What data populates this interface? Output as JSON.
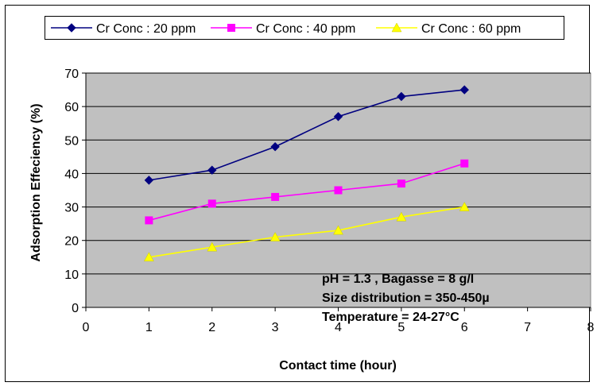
{
  "chart_data": {
    "type": "line",
    "xlabel": "Contact time (hour)",
    "ylabel": "Adsorption Effeciency (%)",
    "xlim": [
      0,
      8
    ],
    "ylim": [
      0,
      70
    ],
    "xticks": [
      "0",
      "1",
      "2",
      "3",
      "4",
      "5",
      "6",
      "7",
      "8"
    ],
    "yticks": [
      "0",
      "10",
      "20",
      "30",
      "40",
      "50",
      "60",
      "70"
    ],
    "grid": "horizontal",
    "plot_background": "#c0c0c0",
    "legend_position": "top",
    "series": [
      {
        "name": "Cr Conc : 20 ppm",
        "marker": "diamond",
        "color": "#000080",
        "x": [
          1,
          2,
          3,
          4,
          5,
          6
        ],
        "y": [
          38,
          41,
          48,
          57,
          63,
          65
        ]
      },
      {
        "name": "Cr Conc : 40 ppm",
        "marker": "square",
        "color": "#ff00ff",
        "x": [
          1,
          2,
          3,
          4,
          5,
          6
        ],
        "y": [
          26,
          31,
          33,
          35,
          37,
          43
        ]
      },
      {
        "name": "Cr Conc : 60 ppm",
        "marker": "triangle",
        "color": "#ffff00",
        "x": [
          1,
          2,
          3,
          4,
          5,
          6
        ],
        "y": [
          15,
          18,
          21,
          23,
          27,
          30
        ]
      }
    ],
    "annotations": [
      "pH = 1.3 , Bagasse = 8 g/l",
      "Size distribution = 350-450µ",
      "Temperature = 24-27°C"
    ]
  }
}
